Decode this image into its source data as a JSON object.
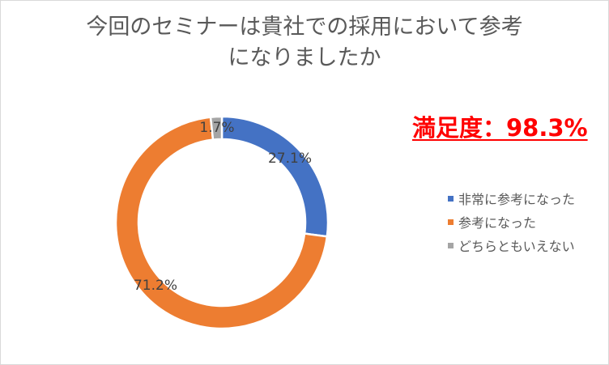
{
  "chart_data": {
    "type": "pie",
    "title_lines": [
      "今回のセミナーは貴社での採用において参考",
      "になりましたか"
    ],
    "series": [
      {
        "name": "非常に参考になった",
        "value": 27.1,
        "label": "27.1%",
        "color": "#4472c4"
      },
      {
        "name": "参考になった",
        "value": 71.2,
        "label": "71.2%",
        "color": "#ed7d31"
      },
      {
        "name": "どちらともいえない",
        "value": 1.7,
        "label": "1.7%",
        "color": "#a5a5a5"
      }
    ],
    "legend_position": "right",
    "annotation": "満足度：98.3%"
  }
}
